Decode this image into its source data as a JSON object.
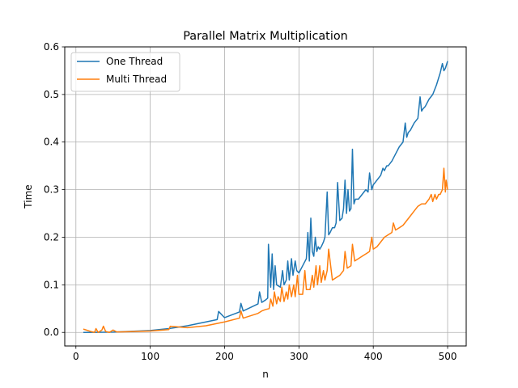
{
  "chart_data": {
    "type": "line",
    "title": "Parallel Matrix Multiplication",
    "xlabel": "n",
    "ylabel": "Time",
    "xlim": [
      -15,
      525
    ],
    "ylim": [
      -0.0285,
      0.6
    ],
    "xticks": [
      0,
      100,
      200,
      300,
      400,
      500
    ],
    "xtick_labels": [
      "0",
      "100",
      "200",
      "300",
      "400",
      "500"
    ],
    "yticks": [
      0.0,
      0.1,
      0.2,
      0.3,
      0.4,
      0.5,
      0.6
    ],
    "ytick_labels": [
      "0.0",
      "0.1",
      "0.2",
      "0.3",
      "0.4",
      "0.5",
      "0.6"
    ],
    "grid": true,
    "legend_position": "upper-left",
    "series": [
      {
        "name": "One Thread",
        "color": "#1f77b4",
        "x": [
          10,
          50,
          100,
          125,
          150,
          175,
          190,
          192,
          200,
          220,
          222,
          225,
          245,
          247,
          250,
          255,
          258,
          259,
          262,
          264,
          266,
          268,
          270,
          275,
          278,
          280,
          283,
          285,
          287,
          290,
          292,
          295,
          297,
          300,
          305,
          310,
          312,
          314,
          316,
          318,
          320,
          322,
          324,
          326,
          328,
          330,
          333,
          335,
          338,
          340,
          342,
          345,
          348,
          350,
          352,
          355,
          358,
          360,
          362,
          364,
          366,
          368,
          370,
          372,
          374,
          376,
          380,
          385,
          390,
          393,
          395,
          398,
          400,
          405,
          410,
          413,
          415,
          418,
          420,
          425,
          430,
          435,
          440,
          443,
          445,
          447,
          450,
          455,
          460,
          463,
          465,
          467,
          470,
          475,
          480,
          485,
          488,
          490,
          493,
          495,
          497,
          500
        ],
        "y": [
          0.0,
          0.0005,
          0.004,
          0.008,
          0.014,
          0.022,
          0.027,
          0.044,
          0.031,
          0.043,
          0.061,
          0.045,
          0.06,
          0.085,
          0.063,
          0.068,
          0.072,
          0.185,
          0.095,
          0.165,
          0.09,
          0.14,
          0.1,
          0.095,
          0.13,
          0.1,
          0.11,
          0.15,
          0.11,
          0.155,
          0.12,
          0.15,
          0.13,
          0.125,
          0.14,
          0.155,
          0.21,
          0.15,
          0.24,
          0.17,
          0.16,
          0.2,
          0.17,
          0.18,
          0.175,
          0.18,
          0.19,
          0.2,
          0.295,
          0.205,
          0.21,
          0.22,
          0.22,
          0.23,
          0.315,
          0.235,
          0.24,
          0.26,
          0.32,
          0.25,
          0.3,
          0.255,
          0.26,
          0.385,
          0.27,
          0.28,
          0.28,
          0.29,
          0.3,
          0.295,
          0.335,
          0.3,
          0.31,
          0.32,
          0.33,
          0.345,
          0.34,
          0.35,
          0.35,
          0.36,
          0.375,
          0.39,
          0.4,
          0.44,
          0.41,
          0.42,
          0.425,
          0.44,
          0.45,
          0.495,
          0.465,
          0.47,
          0.475,
          0.49,
          0.5,
          0.52,
          0.535,
          0.545,
          0.565,
          0.55,
          0.555,
          0.57
        ]
      },
      {
        "name": "Multi Thread",
        "color": "#ff7f0e",
        "x": [
          10,
          20,
          25,
          27,
          30,
          35,
          37,
          40,
          45,
          50,
          55,
          60,
          100,
          125,
          127,
          150,
          175,
          200,
          220,
          222,
          225,
          245,
          250,
          255,
          260,
          262,
          265,
          267,
          270,
          272,
          275,
          277,
          280,
          283,
          285,
          287,
          290,
          293,
          295,
          298,
          300,
          305,
          308,
          310,
          315,
          318,
          320,
          323,
          325,
          328,
          330,
          333,
          335,
          338,
          340,
          345,
          350,
          355,
          360,
          362,
          365,
          370,
          372,
          375,
          380,
          385,
          390,
          395,
          398,
          400,
          405,
          410,
          415,
          420,
          425,
          427,
          430,
          435,
          440,
          445,
          450,
          455,
          460,
          465,
          470,
          475,
          478,
          480,
          483,
          485,
          488,
          490,
          493,
          495,
          497,
          498,
          500
        ],
        "y": [
          0.007,
          0.002,
          0.0,
          0.008,
          0.0,
          0.005,
          0.013,
          0.002,
          0.0,
          0.005,
          0.001,
          0.001,
          0.003,
          0.006,
          0.013,
          0.01,
          0.014,
          0.022,
          0.03,
          0.045,
          0.03,
          0.04,
          0.045,
          0.048,
          0.05,
          0.07,
          0.055,
          0.085,
          0.06,
          0.075,
          0.065,
          0.095,
          0.065,
          0.085,
          0.07,
          0.1,
          0.075,
          0.1,
          0.075,
          0.12,
          0.08,
          0.08,
          0.13,
          0.09,
          0.09,
          0.12,
          0.095,
          0.14,
          0.1,
          0.14,
          0.105,
          0.13,
          0.11,
          0.13,
          0.175,
          0.11,
          0.115,
          0.12,
          0.13,
          0.17,
          0.135,
          0.14,
          0.185,
          0.15,
          0.155,
          0.16,
          0.165,
          0.17,
          0.2,
          0.175,
          0.18,
          0.19,
          0.2,
          0.205,
          0.21,
          0.23,
          0.215,
          0.22,
          0.225,
          0.235,
          0.245,
          0.255,
          0.265,
          0.27,
          0.27,
          0.28,
          0.29,
          0.275,
          0.29,
          0.28,
          0.29,
          0.29,
          0.3,
          0.345,
          0.295,
          0.32,
          0.3
        ]
      }
    ]
  }
}
